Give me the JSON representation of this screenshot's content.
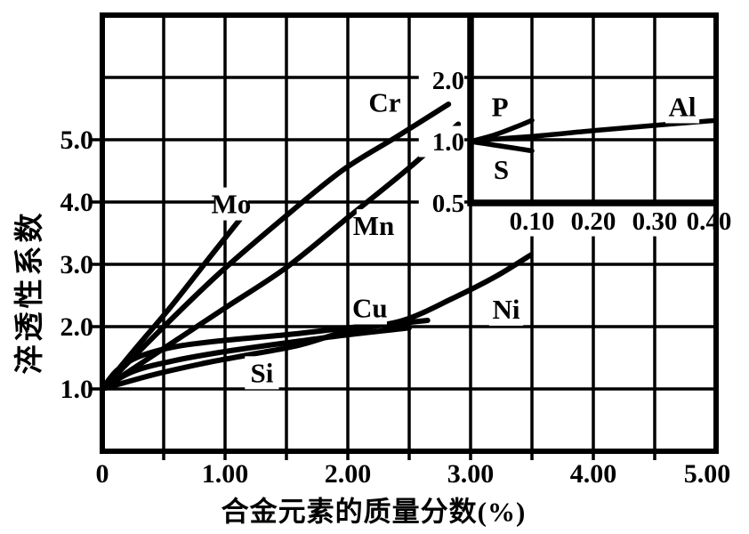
{
  "figure": {
    "paper_color": "#ffffff",
    "ink_color": "#000000",
    "y_title": "淬透性系数",
    "x_title": "合金元素的质量分数(%)"
  },
  "chart_data": [
    {
      "id": "main",
      "type": "line",
      "title": "",
      "xlabel": "合金元素的质量分数(%)",
      "ylabel": "淬透性系数",
      "xlim": [
        0,
        5.0
      ],
      "ylim": [
        0,
        7.0
      ],
      "grid": "on",
      "x_grid_step": 0.5,
      "y_grid_step": 1.0,
      "x_ticks": [
        {
          "v": 0,
          "label": "0"
        },
        {
          "v": 1.0,
          "label": "1.00"
        },
        {
          "v": 2.0,
          "label": "2.00"
        },
        {
          "v": 3.0,
          "label": "3.00"
        },
        {
          "v": 4.0,
          "label": "4.00"
        },
        {
          "v": 5.0,
          "label": "5.00"
        }
      ],
      "y_ticks": [
        {
          "v": 1.0,
          "label": "1.0"
        },
        {
          "v": 2.0,
          "label": "2.0"
        },
        {
          "v": 3.0,
          "label": "3.0"
        },
        {
          "v": 4.0,
          "label": "4.0"
        },
        {
          "v": 5.0,
          "label": "5.0"
        }
      ],
      "series": [
        {
          "name": "Mo",
          "label_at": [
            1.05,
            3.97
          ],
          "points": [
            [
              0,
              1.0
            ],
            [
              0.25,
              1.6
            ],
            [
              0.55,
              2.3
            ],
            [
              0.85,
              3.05
            ],
            [
              1.12,
              3.72
            ]
          ]
        },
        {
          "name": "Cr",
          "label_at": [
            2.3,
            5.6
          ],
          "points": [
            [
              0,
              1.0
            ],
            [
              0.45,
              1.9
            ],
            [
              0.95,
              2.85
            ],
            [
              1.45,
              3.7
            ],
            [
              1.95,
              4.5
            ],
            [
              2.4,
              5.05
            ],
            [
              2.82,
              5.57
            ]
          ]
        },
        {
          "name": "Mn",
          "label_at": [
            2.21,
            3.62
          ],
          "points": [
            [
              0,
              1.0
            ],
            [
              0.5,
              1.65
            ],
            [
              1.0,
              2.3
            ],
            [
              1.5,
              2.95
            ],
            [
              2.0,
              3.75
            ],
            [
              2.5,
              4.55
            ],
            [
              2.9,
              5.25
            ]
          ]
        },
        {
          "name": "Cu",
          "label_at": [
            2.18,
            2.3
          ],
          "points": [
            [
              0,
              1.0
            ],
            [
              0.12,
              1.3
            ],
            [
              0.3,
              1.52
            ],
            [
              0.6,
              1.68
            ],
            [
              1.0,
              1.78
            ],
            [
              1.5,
              1.87
            ],
            [
              2.0,
              1.98
            ],
            [
              2.35,
              2.04
            ],
            [
              2.65,
              2.1
            ]
          ]
        },
        {
          "name": "Si",
          "label_at": [
            1.3,
            1.26
          ],
          "points": [
            [
              0,
              1.0
            ],
            [
              0.25,
              1.28
            ],
            [
              0.6,
              1.46
            ],
            [
              1.0,
              1.6
            ],
            [
              1.5,
              1.74
            ],
            [
              2.0,
              1.87
            ],
            [
              2.5,
              1.98
            ]
          ]
        },
        {
          "name": "Ni",
          "label_at": [
            3.29,
            2.28
          ],
          "points": [
            [
              0,
              1.0
            ],
            [
              0.4,
              1.22
            ],
            [
              0.8,
              1.4
            ],
            [
              1.2,
              1.55
            ],
            [
              1.6,
              1.7
            ],
            [
              2.0,
              1.93
            ],
            [
              2.45,
              2.1
            ],
            [
              2.85,
              2.45
            ],
            [
              3.2,
              2.8
            ],
            [
              3.49,
              3.15
            ]
          ]
        }
      ]
    },
    {
      "id": "inset",
      "type": "line",
      "title": "",
      "xlabel": "",
      "ylabel": "",
      "xlim": [
        0,
        0.4
      ],
      "ylim": [
        0.5,
        4.0
      ],
      "y_scale": "log2",
      "grid": "on",
      "x_ticks": [
        {
          "v": 0.1,
          "label": "0.10"
        },
        {
          "v": 0.2,
          "label": "0.20"
        },
        {
          "v": 0.3,
          "label": "0.30"
        },
        {
          "v": 0.4,
          "label": "0.40"
        }
      ],
      "y_ticks": [
        {
          "v": 0.5,
          "label": "0.5"
        },
        {
          "v": 1.0,
          "label": "1.0"
        },
        {
          "v": 2.0,
          "label": "2.0"
        }
      ],
      "series": [
        {
          "name": "P",
          "label_at": [
            0.048,
            1.48
          ],
          "points": [
            [
              0,
              1.0
            ],
            [
              0.04,
              1.08
            ],
            [
              0.08,
              1.2
            ],
            [
              0.1,
              1.27
            ]
          ]
        },
        {
          "name": "S",
          "label_at": [
            0.05,
            0.73
          ],
          "points": [
            [
              0,
              1.0
            ],
            [
              0.04,
              0.96
            ],
            [
              0.08,
              0.92
            ],
            [
              0.1,
              0.9
            ]
          ]
        },
        {
          "name": "Al",
          "label_at": [
            0.345,
            1.48
          ],
          "points": [
            [
              0,
              1.01
            ],
            [
              0.1,
              1.06
            ],
            [
              0.2,
              1.13
            ],
            [
              0.3,
              1.2
            ],
            [
              0.4,
              1.27
            ]
          ]
        }
      ]
    }
  ]
}
